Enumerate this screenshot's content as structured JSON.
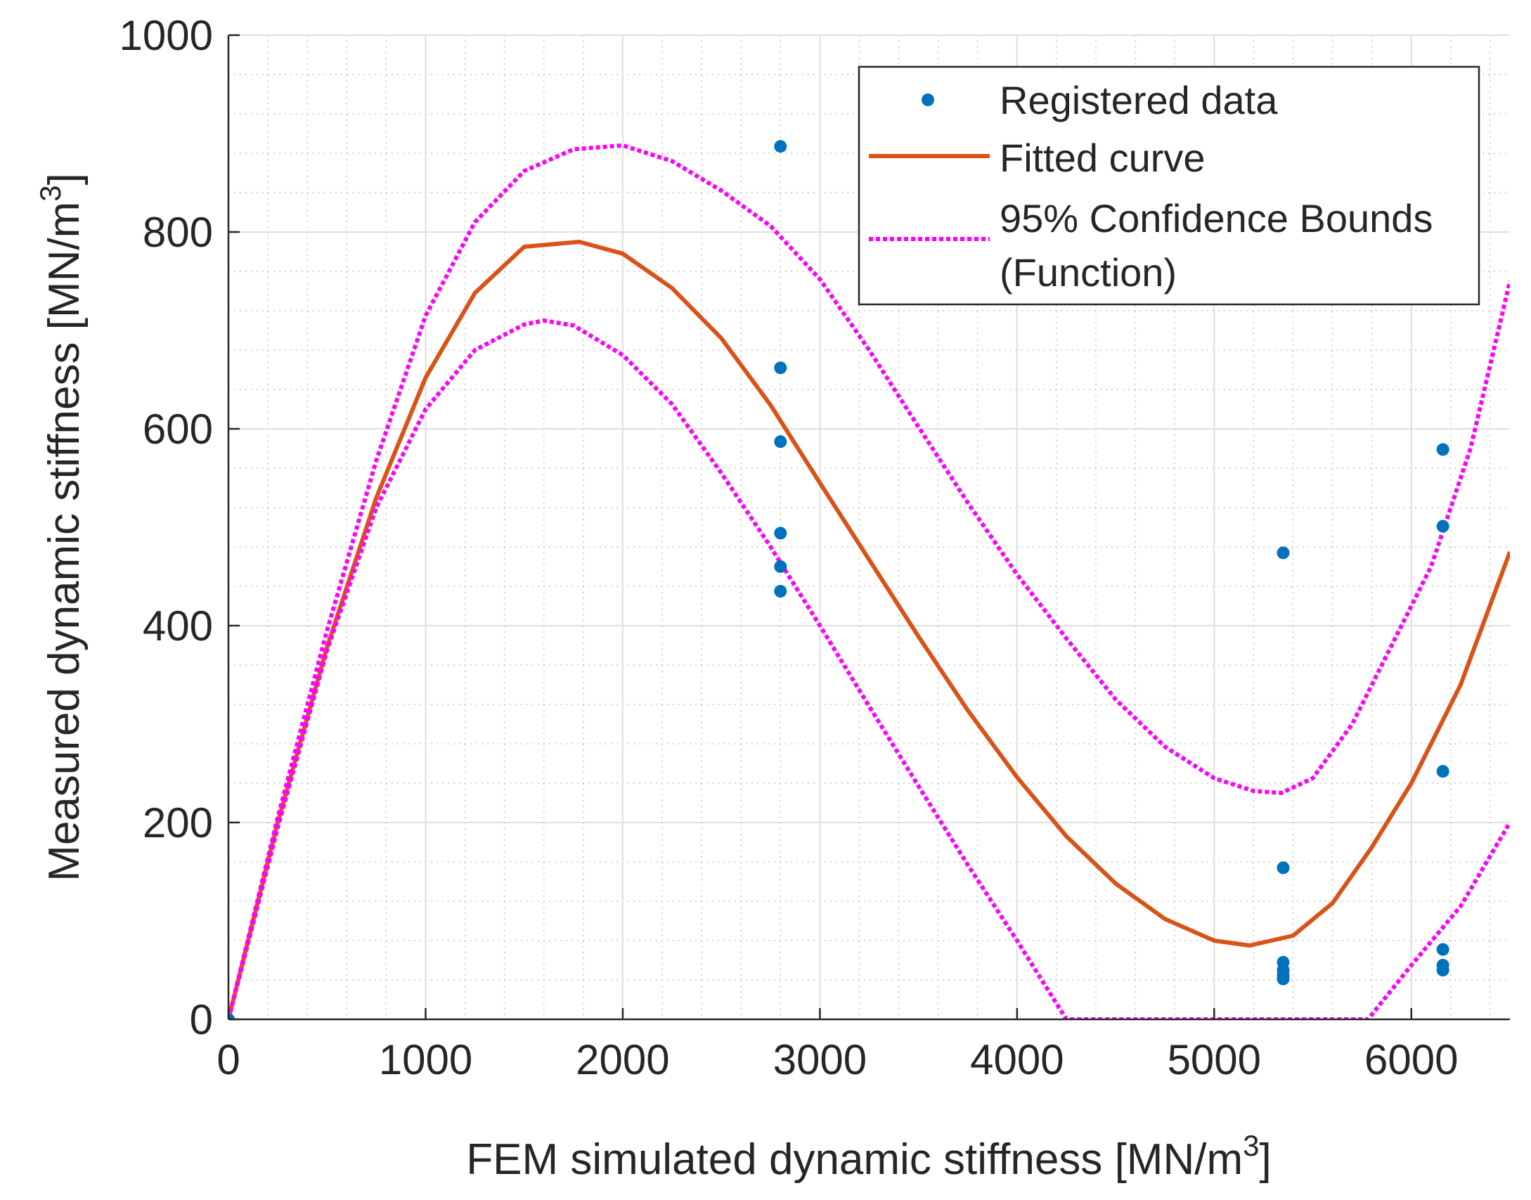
{
  "chart_data": {
    "type": "scatter",
    "xlabel": "FEM simulated dynamic stiffness [MN/m",
    "xlabel_sup": "3",
    "xlabel_end": "]",
    "ylabel": "Measured dynamic stiffness [MN/m",
    "ylabel_sup": "3",
    "ylabel_end": "]",
    "xlim": [
      0,
      6500
    ],
    "ylim": [
      0,
      1000
    ],
    "x_ticks": [
      0,
      1000,
      2000,
      3000,
      4000,
      5000,
      6000
    ],
    "y_ticks": [
      0,
      200,
      400,
      600,
      800,
      1000
    ],
    "x_tick_labels": [
      "0",
      "1000",
      "2000",
      "3000",
      "4000",
      "5000",
      "6000"
    ],
    "y_tick_labels": [
      "0",
      "200",
      "400",
      "600",
      "800",
      "1000"
    ],
    "grid": "major and minor",
    "legend_position": "top-right",
    "legend": [
      {
        "label": "Registered data",
        "style": "dot"
      },
      {
        "label": "Fitted curve",
        "style": "solid"
      },
      {
        "label": "95% Confidence Bounds",
        "style": "dotted"
      },
      {
        "label": "(Function)",
        "style": "none"
      }
    ],
    "series": [
      {
        "name": "Registered data",
        "kind": "scatter",
        "color": "#0072BD",
        "points": [
          [
            0,
            0
          ],
          [
            2800,
            887
          ],
          [
            2800,
            662
          ],
          [
            2800,
            587
          ],
          [
            2800,
            494
          ],
          [
            2800,
            460
          ],
          [
            2800,
            435
          ],
          [
            5350,
            474
          ],
          [
            5350,
            154
          ],
          [
            5350,
            58
          ],
          [
            5350,
            50
          ],
          [
            5350,
            45
          ],
          [
            5350,
            41
          ],
          [
            6160,
            579
          ],
          [
            6160,
            501
          ],
          [
            6160,
            252
          ],
          [
            6160,
            71
          ],
          [
            6160,
            55
          ],
          [
            6160,
            50
          ]
        ]
      },
      {
        "name": "Fitted curve",
        "kind": "line",
        "color": "#D95319",
        "points": [
          [
            0,
            0
          ],
          [
            250,
            200
          ],
          [
            500,
            378
          ],
          [
            750,
            530
          ],
          [
            1000,
            652
          ],
          [
            1250,
            738
          ],
          [
            1500,
            785
          ],
          [
            1780,
            790
          ],
          [
            2000,
            778
          ],
          [
            2250,
            743
          ],
          [
            2500,
            692
          ],
          [
            2750,
            624
          ],
          [
            3000,
            545
          ],
          [
            3250,
            467
          ],
          [
            3500,
            389
          ],
          [
            3750,
            314
          ],
          [
            4000,
            246
          ],
          [
            4250,
            186
          ],
          [
            4500,
            138
          ],
          [
            4750,
            102
          ],
          [
            5000,
            80
          ],
          [
            5180,
            75
          ],
          [
            5400,
            85
          ],
          [
            5600,
            118
          ],
          [
            5800,
            175
          ],
          [
            6000,
            240
          ],
          [
            6250,
            340
          ],
          [
            6500,
            475
          ]
        ]
      },
      {
        "name": "95% Confidence Bounds upper",
        "kind": "line",
        "color": "#FF00FF",
        "points": [
          [
            0,
            0
          ],
          [
            250,
            205
          ],
          [
            500,
            395
          ],
          [
            750,
            568
          ],
          [
            1000,
            715
          ],
          [
            1250,
            810
          ],
          [
            1500,
            862
          ],
          [
            1750,
            884
          ],
          [
            2000,
            888
          ],
          [
            2250,
            872
          ],
          [
            2500,
            842
          ],
          [
            2750,
            806
          ],
          [
            3000,
            752
          ],
          [
            3250,
            680
          ],
          [
            3500,
            602
          ],
          [
            3750,
            525
          ],
          [
            4000,
            452
          ],
          [
            4250,
            387
          ],
          [
            4500,
            325
          ],
          [
            4750,
            277
          ],
          [
            5000,
            245
          ],
          [
            5200,
            232
          ],
          [
            5340,
            230
          ],
          [
            5500,
            245
          ],
          [
            5700,
            300
          ],
          [
            5900,
            380
          ],
          [
            6100,
            460
          ],
          [
            6300,
            580
          ],
          [
            6500,
            750
          ]
        ]
      },
      {
        "name": "95% Confidence Bounds lower",
        "kind": "line",
        "color": "#FF00FF",
        "points": [
          [
            0,
            0
          ],
          [
            250,
            195
          ],
          [
            500,
            375
          ],
          [
            750,
            520
          ],
          [
            1000,
            620
          ],
          [
            1250,
            680
          ],
          [
            1500,
            706
          ],
          [
            1600,
            710
          ],
          [
            1750,
            705
          ],
          [
            2000,
            675
          ],
          [
            2250,
            625
          ],
          [
            2500,
            555
          ],
          [
            2750,
            480
          ],
          [
            3000,
            400
          ],
          [
            3250,
            318
          ],
          [
            3500,
            237
          ],
          [
            3750,
            157
          ],
          [
            4000,
            80
          ],
          [
            4250,
            0
          ],
          [
            5780,
            0
          ],
          [
            6000,
            55
          ],
          [
            6250,
            115
          ],
          [
            6500,
            200
          ]
        ]
      }
    ]
  },
  "style": {
    "scatter_color": "#0072BD",
    "fit_color": "#D95319",
    "bound_color": "#FF00FF",
    "axis_color": "#262626",
    "grid_color": "#dfdfdf"
  }
}
